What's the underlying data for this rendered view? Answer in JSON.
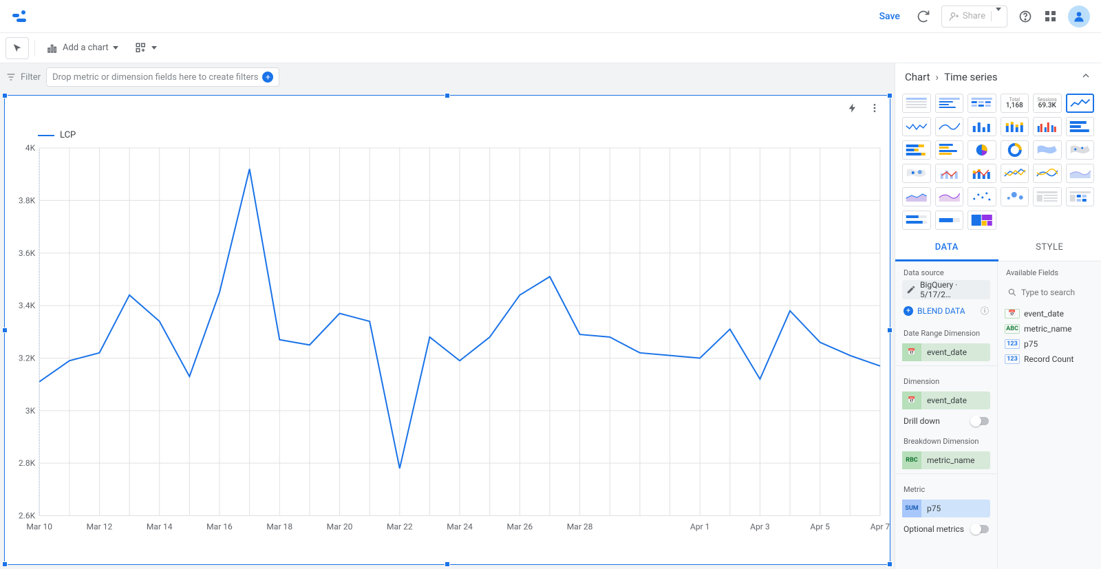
{
  "header": {
    "save_label": "Save",
    "share_label": "Share"
  },
  "toolbar": {
    "add_chart_label": "Add a chart"
  },
  "filter_bar": {
    "label": "Filter",
    "placeholder": "Drop metric or dimension fields here to create filters"
  },
  "chart": {
    "type": "line",
    "legend_label": "LCP",
    "line_color": "#1a73e8",
    "grid_color": "#e0e0e0",
    "outer_border_color": "#1a73e8",
    "background_color": "#ffffff",
    "y": {
      "min": 2600,
      "max": 4000,
      "ticks": [
        2600,
        2800,
        3000,
        3200,
        3400,
        3600,
        3800,
        4000
      ],
      "tick_labels": [
        "2.6K",
        "2.8K",
        "3K",
        "3.2K",
        "3.4K",
        "3.6K",
        "3.8K",
        "4K"
      ]
    },
    "x": {
      "tick_labels": [
        "Mar 10",
        "Mar 12",
        "Mar 14",
        "Mar 16",
        "Mar 18",
        "Mar 20",
        "Mar 22",
        "Mar 24",
        "Mar 26",
        "Mar 28",
        "",
        "Apr 1",
        "Apr 3",
        "Apr 5",
        "Apr 7"
      ],
      "tick_interval_points": 2
    },
    "values": [
      3110,
      3190,
      3220,
      3440,
      3340,
      3130,
      3450,
      3920,
      3270,
      3250,
      3370,
      3340,
      2780,
      3280,
      3190,
      3280,
      3440,
      3510,
      3290,
      3280,
      3220,
      3210,
      3200,
      3310,
      3120,
      3380,
      3260,
      3210,
      3170
    ]
  },
  "panel": {
    "breadcrumb_root": "Chart",
    "breadcrumb_leaf": "Time series",
    "kpi_total": {
      "title": "Total",
      "value": "1,168"
    },
    "kpi_sessions": {
      "title": "Sessions",
      "value": "69.3K"
    },
    "tabs": {
      "data": "DATA",
      "style": "STYLE"
    },
    "data_source_label": "Data source",
    "data_source_value": "BigQuery · 5/17/2…",
    "blend_label": "BLEND DATA",
    "date_range_label": "Date Range Dimension",
    "date_range_field": "event_date",
    "dimension_label": "Dimension",
    "dimension_field": "event_date",
    "drill_down_label": "Drill down",
    "breakdown_label": "Breakdown Dimension",
    "breakdown_field": "metric_name",
    "metric_label": "Metric",
    "metric_field": "p75",
    "optional_metrics_label": "Optional metrics",
    "available_fields_label": "Available Fields",
    "search_placeholder": "Type to search",
    "fields": [
      {
        "kind": "dim",
        "type_label": "📅",
        "name": "event_date"
      },
      {
        "kind": "dim",
        "type_label": "ABC",
        "name": "metric_name"
      },
      {
        "kind": "met",
        "type_label": "123",
        "name": "p75"
      },
      {
        "kind": "met",
        "type_label": "123",
        "name": "Record Count"
      }
    ]
  }
}
